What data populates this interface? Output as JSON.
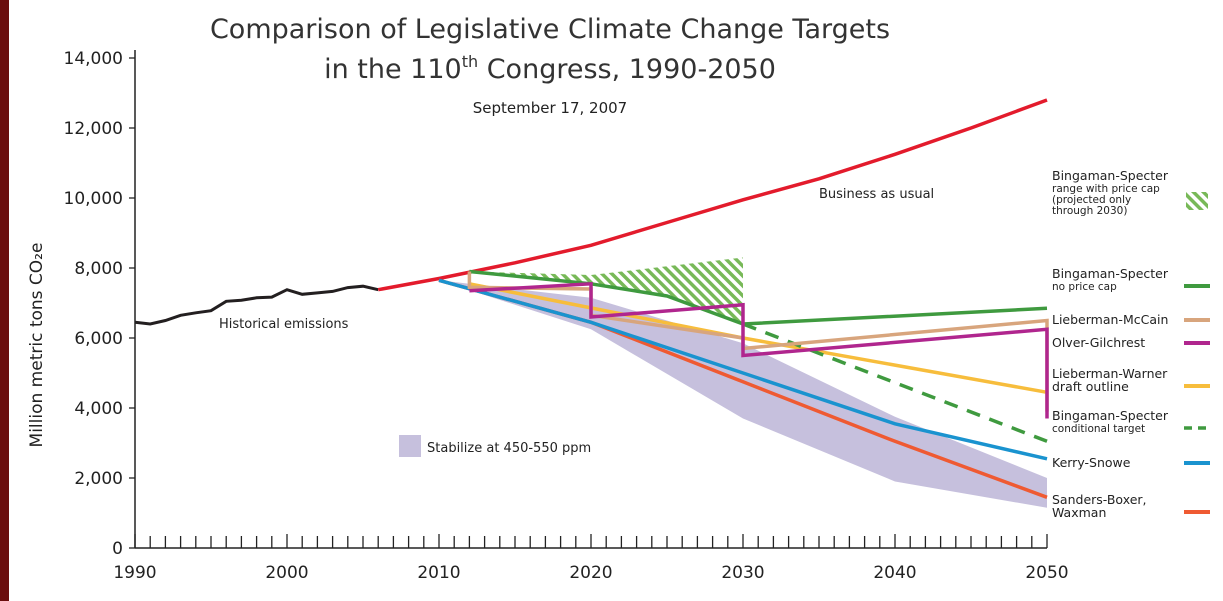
{
  "chart_data": {
    "type": "line",
    "title_line1": "Comparison of Legislative Climate Change Targets",
    "title_line2_prefix": "in the 110",
    "title_line2_sup": "th",
    "title_line2_suffix": " Congress, 1990-2050",
    "subtitle": "September 17, 2007",
    "ylabel": "Million metric tons CO₂e",
    "xlim": [
      1990,
      2050
    ],
    "ylim": [
      0,
      14000
    ],
    "x_ticks": [
      "1990",
      "2000",
      "2010",
      "2020",
      "2030",
      "2040",
      "2050"
    ],
    "y_ticks": [
      "0",
      "2,000",
      "4,000",
      "6,000",
      "8,000",
      "10,000",
      "12,000",
      "14,000"
    ],
    "annotations": {
      "historical": "Historical emissions",
      "bau": "Business as usual",
      "stabilize": "Stabilize at 450-550 ppm"
    },
    "colors": {
      "historical": "#231f20",
      "bau": "#e31b2c",
      "bs_no_cap": "#3f9a3f",
      "lieberman_mccain": "#d8a57d",
      "olver_gilchrest": "#b0268e",
      "lieberman_warner": "#f7bd3c",
      "bs_conditional": "#3f9a3f",
      "kerry_snowe": "#1a93cf",
      "sanders_boxer": "#ef5a32",
      "range_hatch": "#78b958",
      "stabilize_band": "#c6c0dd"
    },
    "legend": [
      {
        "id": "range",
        "lines": [
          "Bingaman-Specter"
        ],
        "small": [
          "range with price cap",
          "(projected only",
          "through 2030)"
        ],
        "swatch": "hatch"
      },
      {
        "id": "bs_no_cap",
        "lines": [
          "Bingaman-Specter"
        ],
        "small": [
          "no price cap"
        ],
        "swatch": "solid"
      },
      {
        "id": "lieberman_mccain",
        "lines": [
          "Lieberman-McCain"
        ],
        "small": [],
        "swatch": "solid"
      },
      {
        "id": "olver_gilchrest",
        "lines": [
          "Olver-Gilchrest"
        ],
        "small": [],
        "swatch": "solid"
      },
      {
        "id": "lieberman_warner",
        "lines": [
          "Lieberman-Warner",
          "draft outline"
        ],
        "small": [],
        "swatch": "solid"
      },
      {
        "id": "bs_conditional",
        "lines": [
          "Bingaman-Specter"
        ],
        "small": [
          "conditional target"
        ],
        "swatch": "dashed"
      },
      {
        "id": "kerry_snowe",
        "lines": [
          "Kerry-Snowe"
        ],
        "small": [],
        "swatch": "solid"
      },
      {
        "id": "sanders_boxer",
        "lines": [
          "Sanders-Boxer,",
          "Waxman"
        ],
        "small": [],
        "swatch": "solid"
      }
    ],
    "series": [
      {
        "id": "historical",
        "points": [
          [
            1990,
            6450
          ],
          [
            1991,
            6400
          ],
          [
            1992,
            6500
          ],
          [
            1993,
            6650
          ],
          [
            1994,
            6720
          ],
          [
            1995,
            6780
          ],
          [
            1996,
            7050
          ],
          [
            1997,
            7080
          ],
          [
            1998,
            7150
          ],
          [
            1999,
            7170
          ],
          [
            2000,
            7380
          ],
          [
            2001,
            7250
          ],
          [
            2002,
            7290
          ],
          [
            2003,
            7330
          ],
          [
            2004,
            7440
          ],
          [
            2005,
            7480
          ],
          [
            2006,
            7380
          ]
        ]
      },
      {
        "id": "bau",
        "points": [
          [
            2006,
            7380
          ],
          [
            2010,
            7700
          ],
          [
            2015,
            8150
          ],
          [
            2020,
            8650
          ],
          [
            2025,
            9300
          ],
          [
            2030,
            9950
          ],
          [
            2035,
            10550
          ],
          [
            2040,
            11250
          ],
          [
            2045,
            12000
          ],
          [
            2050,
            12800
          ]
        ]
      },
      {
        "id": "range_low",
        "points": [
          [
            2012,
            7900
          ],
          [
            2020,
            7500
          ],
          [
            2025,
            7250
          ],
          [
            2030,
            6400
          ]
        ]
      },
      {
        "id": "range_high",
        "points": [
          [
            2012,
            7900
          ],
          [
            2020,
            7800
          ],
          [
            2025,
            8050
          ],
          [
            2030,
            8300
          ]
        ]
      },
      {
        "id": "bs_no_cap",
        "points": [
          [
            2012,
            7900
          ],
          [
            2020,
            7550
          ],
          [
            2025,
            7200
          ],
          [
            2030,
            6400
          ],
          [
            2050,
            6850
          ]
        ]
      },
      {
        "id": "lieberman_mccain",
        "points": [
          [
            2012,
            7400
          ],
          [
            2012,
            7900
          ],
          [
            2012,
            7450
          ],
          [
            2020,
            7400
          ],
          [
            2020,
            6650
          ],
          [
            2030,
            6000
          ],
          [
            2030,
            5700
          ],
          [
            2050,
            6500
          ],
          [
            2050,
            3900
          ]
        ]
      },
      {
        "id": "olver_gilchrest",
        "points": [
          [
            2012,
            7350
          ],
          [
            2020,
            7550
          ],
          [
            2020,
            6600
          ],
          [
            2030,
            6950
          ],
          [
            2030,
            5500
          ],
          [
            2050,
            6250
          ],
          [
            2050,
            3700
          ]
        ]
      },
      {
        "id": "lieberman_warner",
        "points": [
          [
            2012,
            7550
          ],
          [
            2030,
            6000
          ],
          [
            2050,
            4450
          ]
        ]
      },
      {
        "id": "bs_conditional",
        "points": [
          [
            2030,
            6400
          ],
          [
            2050,
            3050
          ]
        ],
        "dashed": true
      },
      {
        "id": "kerry_snowe",
        "points": [
          [
            2010,
            7650
          ],
          [
            2020,
            6450
          ],
          [
            2030,
            5000
          ],
          [
            2040,
            3550
          ],
          [
            2050,
            2550
          ]
        ]
      },
      {
        "id": "sanders_boxer",
        "points": [
          [
            2010,
            7650
          ],
          [
            2020,
            6450
          ],
          [
            2030,
            4750
          ],
          [
            2040,
            3050
          ],
          [
            2050,
            1450
          ]
        ]
      },
      {
        "id": "stabilize_upper",
        "points": [
          [
            2010,
            7650
          ],
          [
            2020,
            7150
          ],
          [
            2030,
            5850
          ],
          [
            2040,
            3750
          ],
          [
            2050,
            2000
          ]
        ]
      },
      {
        "id": "stabilize_lower",
        "points": [
          [
            2010,
            7650
          ],
          [
            2020,
            6250
          ],
          [
            2030,
            3700
          ],
          [
            2040,
            1900
          ],
          [
            2050,
            1150
          ]
        ]
      }
    ]
  }
}
